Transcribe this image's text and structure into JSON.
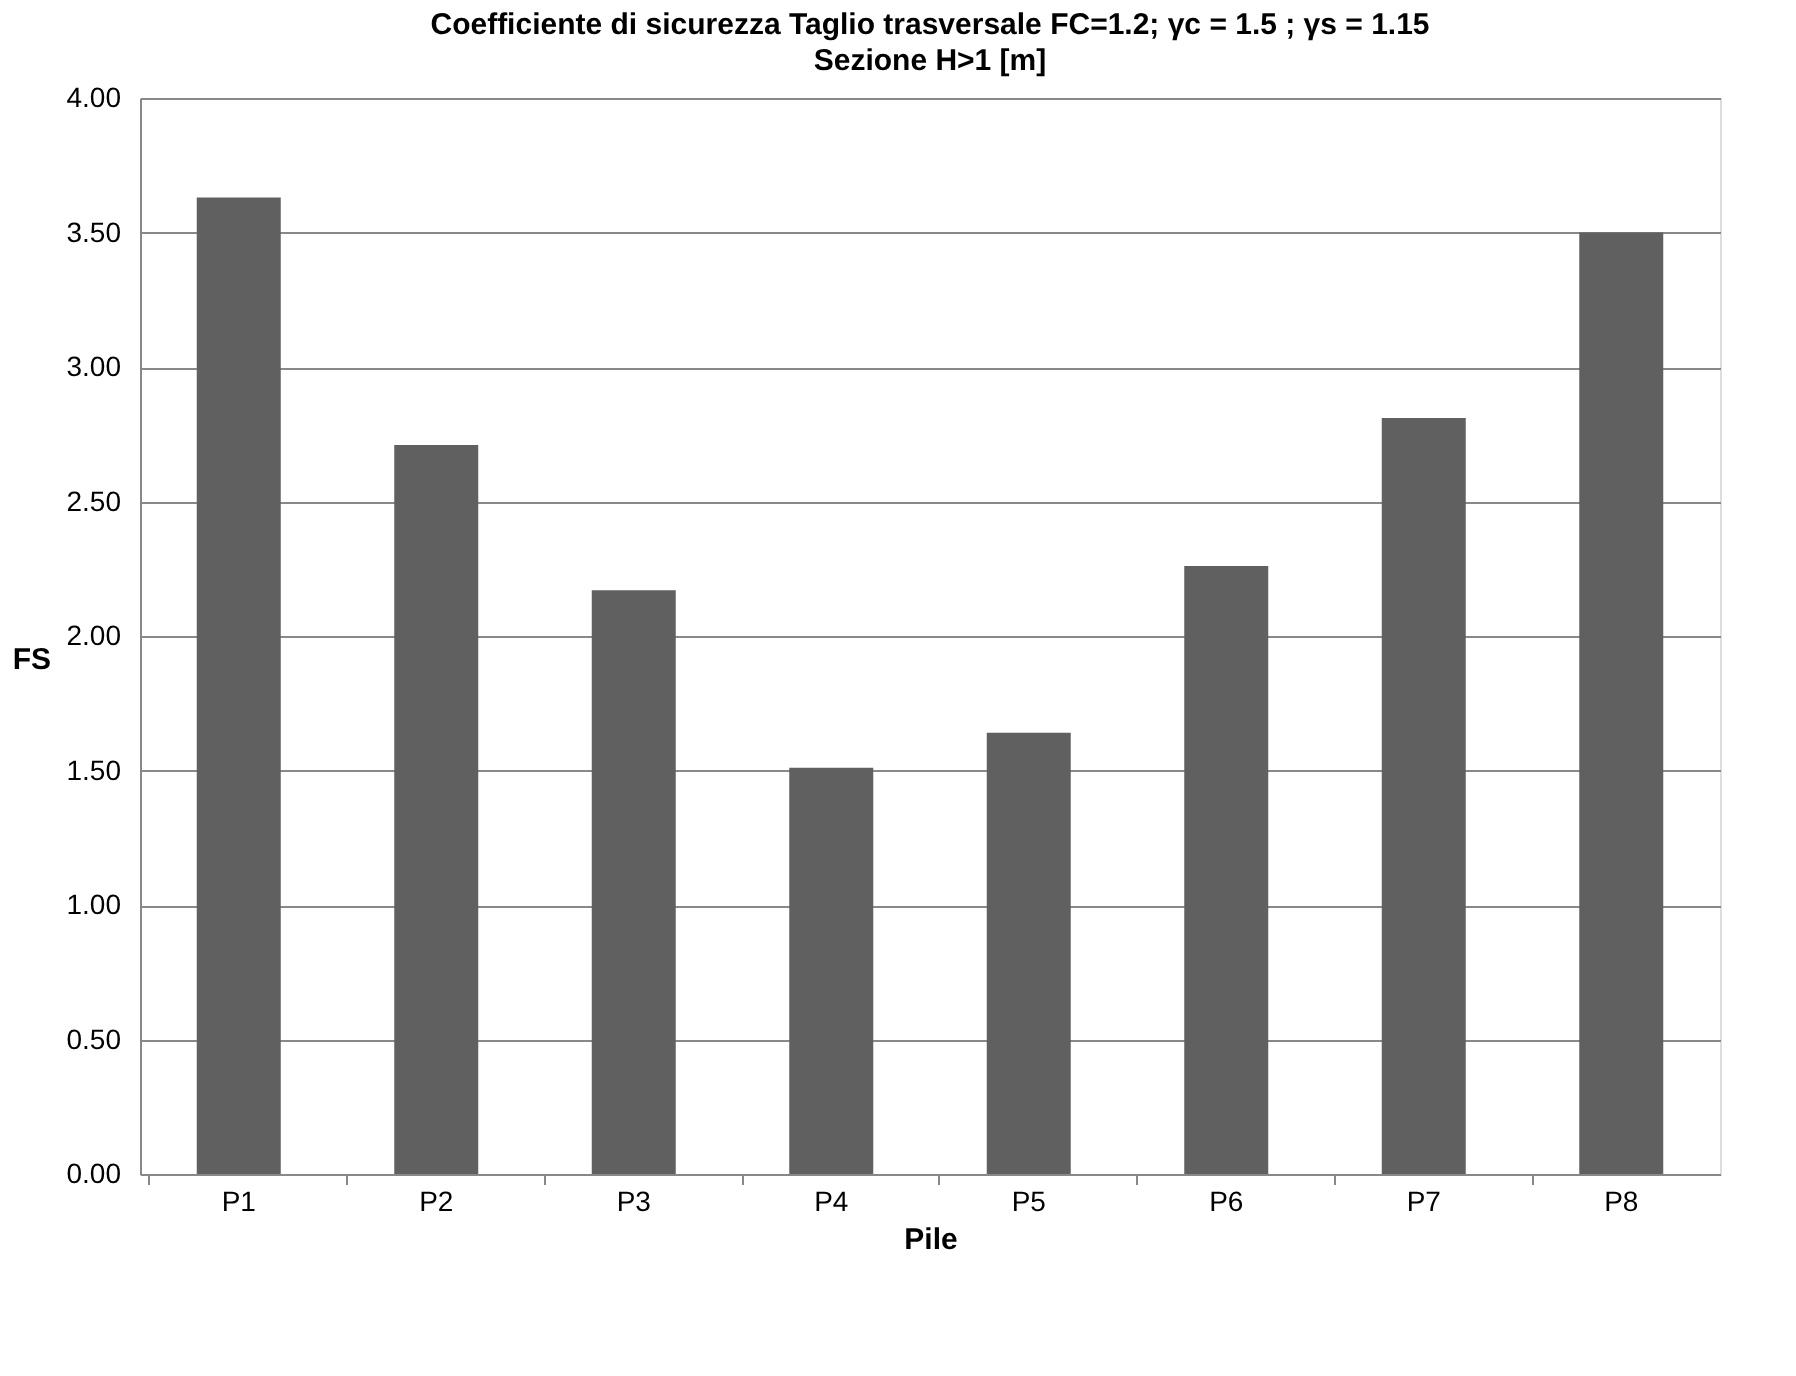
{
  "chart_data": {
    "type": "bar",
    "title": "Coefficiente di sicurezza Taglio trasversale   FC=1.2; γc = 1.5 ; γs = 1.15",
    "subtitle": "Sezione H>1 [m]",
    "xlabel": "Pile",
    "ylabel": "FS",
    "categories": [
      "P1",
      "P2",
      "P3",
      "P4",
      "P5",
      "P6",
      "P7",
      "P8"
    ],
    "values": [
      3.63,
      2.71,
      2.17,
      1.51,
      1.64,
      2.26,
      2.81,
      3.5
    ],
    "color": "#606060",
    "ylim": [
      0,
      4
    ],
    "yticks": [
      {
        "value": 0,
        "label": "0.00"
      },
      {
        "value": 0.5,
        "label": "0.50"
      },
      {
        "value": 1,
        "label": "1.00"
      },
      {
        "value": 1.5,
        "label": "1.50"
      },
      {
        "value": 2,
        "label": "2.00"
      },
      {
        "value": 2.5,
        "label": "2.50"
      },
      {
        "value": 3,
        "label": "3.00"
      },
      {
        "value": 3.5,
        "label": "3.50"
      },
      {
        "value": 4,
        "label": "4.00"
      }
    ],
    "grid": "y"
  }
}
